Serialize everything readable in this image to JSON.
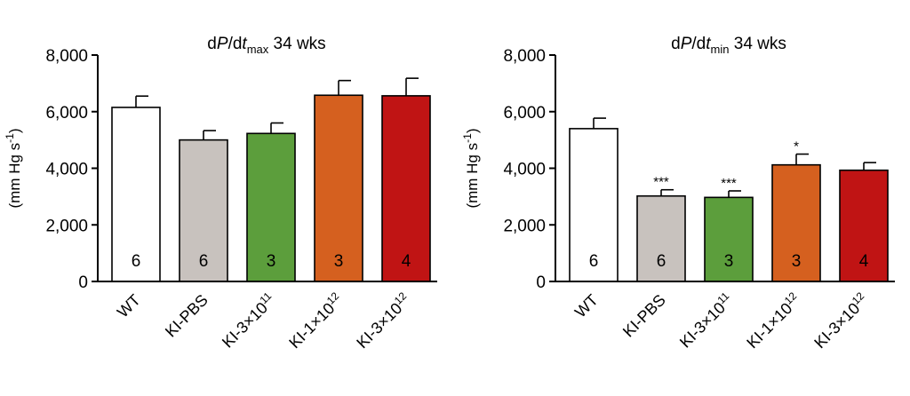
{
  "chart_data": [
    {
      "type": "bar",
      "title_prefix": "dP/dt",
      "title_sub": "max",
      "title_suffix": "34 wks",
      "ylabel": "(mm Hg s",
      "ylabel_sup": "-1",
      "ylabel_end": ")",
      "ylim": [
        0,
        8000
      ],
      "yticks": [
        "0",
        "2,000",
        "4,000",
        "6,000",
        "8,000"
      ],
      "ytick_values": [
        0,
        2000,
        4000,
        6000,
        8000
      ],
      "categories": [
        {
          "pre": "WT",
          "exp": ""
        },
        {
          "pre": "KI-PBS",
          "exp": ""
        },
        {
          "pre": "KI-3×10",
          "exp": "11"
        },
        {
          "pre": "KI-1×10",
          "exp": "12"
        },
        {
          "pre": "KI-3×10",
          "exp": "12"
        }
      ],
      "values": [
        6150,
        5000,
        5230,
        6580,
        6560
      ],
      "errors": [
        400,
        330,
        370,
        520,
        620
      ],
      "n_labels": [
        "6",
        "6",
        "3",
        "3",
        "4"
      ],
      "significance": [
        "",
        "",
        "",
        "",
        ""
      ],
      "colors": [
        "#ffffff",
        "#c8c2be",
        "#5c9e3c",
        "#d5601f",
        "#c01414"
      ]
    },
    {
      "type": "bar",
      "title_prefix": "dP/dt",
      "title_sub": "min",
      "title_suffix": "34 wks",
      "ylabel": "(mm Hg s",
      "ylabel_sup": "-1",
      "ylabel_end": ")",
      "ylim": [
        0,
        8000
      ],
      "yticks": [
        "0",
        "2,000",
        "4,000",
        "6,000",
        "8,000"
      ],
      "ytick_values": [
        0,
        2000,
        4000,
        6000,
        8000
      ],
      "categories": [
        {
          "pre": "WT",
          "exp": ""
        },
        {
          "pre": "KI-PBS",
          "exp": ""
        },
        {
          "pre": "KI-3×10",
          "exp": "11"
        },
        {
          "pre": "KI-1×10",
          "exp": "12"
        },
        {
          "pre": "KI-3×10",
          "exp": "12"
        }
      ],
      "values": [
        5400,
        3020,
        2970,
        4120,
        3930
      ],
      "errors": [
        370,
        220,
        230,
        380,
        270
      ],
      "n_labels": [
        "6",
        "6",
        "3",
        "3",
        "4"
      ],
      "significance": [
        "",
        "***",
        "***",
        "*",
        ""
      ],
      "colors": [
        "#ffffff",
        "#c8c2be",
        "#5c9e3c",
        "#d5601f",
        "#c01414"
      ]
    }
  ]
}
